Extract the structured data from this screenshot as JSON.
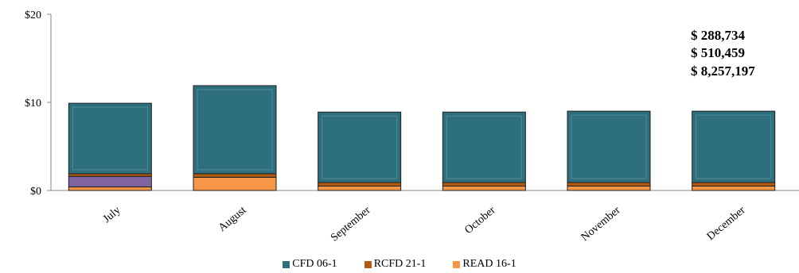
{
  "chart_data": {
    "type": "bar",
    "stacked": true,
    "categories": [
      "July",
      "August",
      "September",
      "October",
      "November",
      "December"
    ],
    "series": [
      {
        "name": "READ 16-1",
        "color": "#f79646",
        "values": [
          0.4,
          1.5,
          0.5,
          0.5,
          0.5,
          0.5
        ]
      },
      {
        "name": "",
        "color": "#8064a2",
        "values": [
          1.2,
          0,
          0,
          0,
          0,
          0
        ]
      },
      {
        "name": "RCFD 21-1",
        "color": "#b35a11",
        "values": [
          0.3,
          0.4,
          0.4,
          0.4,
          0.4,
          0.4
        ]
      },
      {
        "name": "CFD 06-1",
        "color": "#2e6f7e",
        "values": [
          8.0,
          10.0,
          8.0,
          8.0,
          8.1,
          8.1
        ]
      }
    ],
    "yticks": [
      "$0",
      "$10",
      "$20"
    ],
    "ylim": [
      0,
      20
    ],
    "annotations": [
      "$  288,734",
      "$  510,459",
      "$ 8,257,197"
    ],
    "legend": [
      "CFD 06-1",
      "RCFD 21-1",
      "READ 16-1"
    ],
    "legend_colors": [
      "#2e6f7e",
      "#b35a11",
      "#f79646"
    ]
  }
}
